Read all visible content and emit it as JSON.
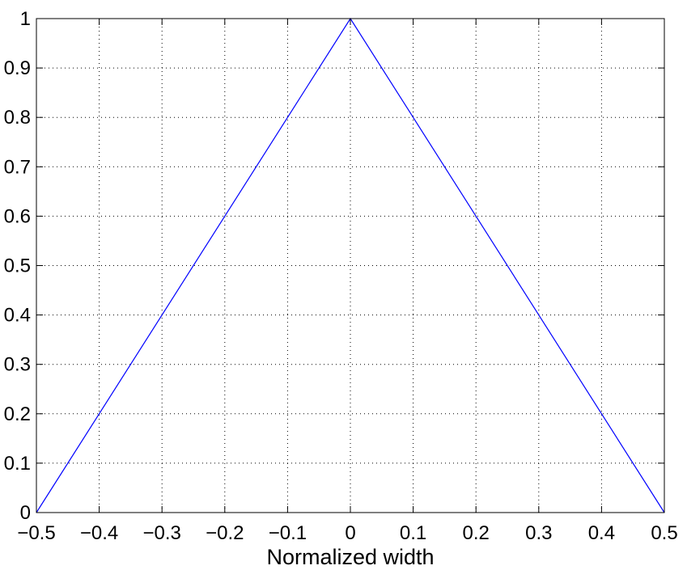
{
  "chart_data": {
    "type": "line",
    "title": "",
    "xlabel": "Normalized width",
    "ylabel": "",
    "xlim": [
      -0.5,
      0.5
    ],
    "ylim": [
      0,
      1
    ],
    "grid": true,
    "x_ticks": [
      {
        "value": -0.5,
        "label": "−0.5"
      },
      {
        "value": -0.4,
        "label": "−0.4"
      },
      {
        "value": -0.3,
        "label": "−0.3"
      },
      {
        "value": -0.2,
        "label": "−0.2"
      },
      {
        "value": -0.1,
        "label": "−0.1"
      },
      {
        "value": 0,
        "label": "0"
      },
      {
        "value": 0.1,
        "label": "0.1"
      },
      {
        "value": 0.2,
        "label": "0.2"
      },
      {
        "value": 0.3,
        "label": "0.3"
      },
      {
        "value": 0.4,
        "label": "0.4"
      },
      {
        "value": 0.5,
        "label": "0.5"
      }
    ],
    "y_ticks": [
      {
        "value": 0,
        "label": "0"
      },
      {
        "value": 0.1,
        "label": "0.1"
      },
      {
        "value": 0.2,
        "label": "0.2"
      },
      {
        "value": 0.3,
        "label": "0.3"
      },
      {
        "value": 0.4,
        "label": "0.4"
      },
      {
        "value": 0.5,
        "label": "0.5"
      },
      {
        "value": 0.6,
        "label": "0.6"
      },
      {
        "value": 0.7,
        "label": "0.7"
      },
      {
        "value": 0.8,
        "label": "0.8"
      },
      {
        "value": 0.9,
        "label": "0.9"
      },
      {
        "value": 1,
        "label": "1"
      }
    ],
    "series": [
      {
        "color": "#0000ff",
        "x": [
          -0.5,
          0,
          0.5
        ],
        "y": [
          0,
          1,
          0
        ]
      }
    ]
  }
}
